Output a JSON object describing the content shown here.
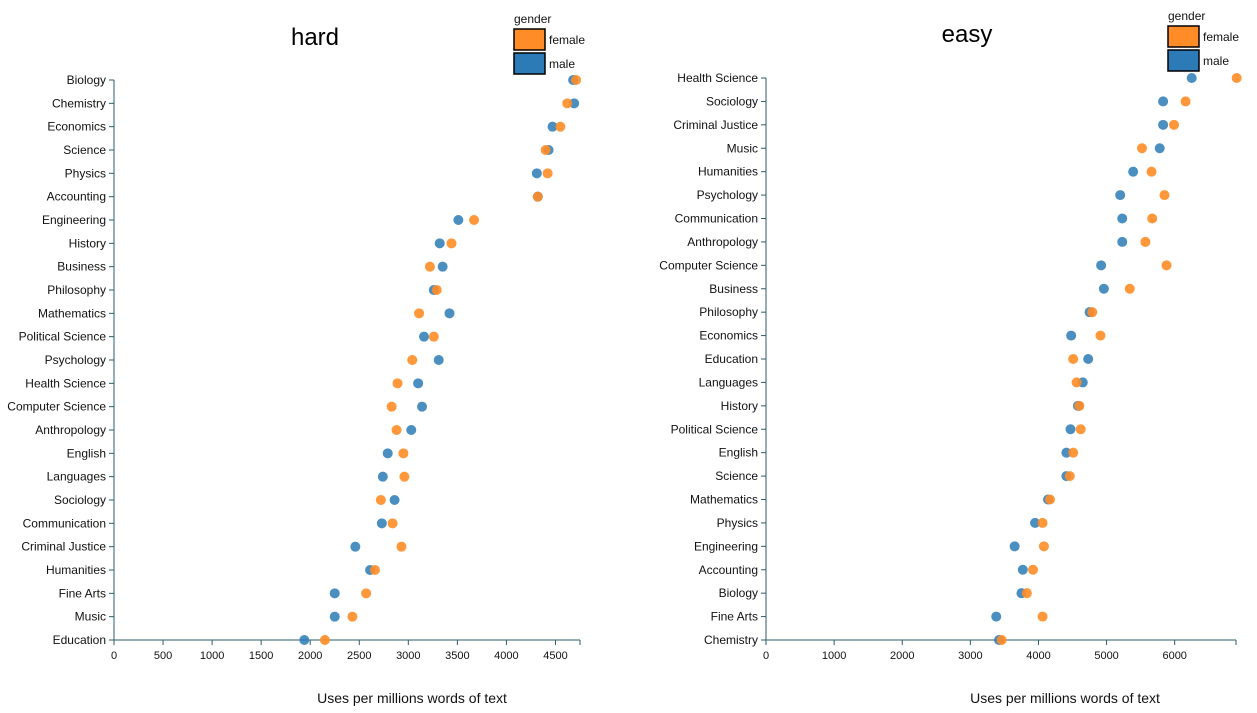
{
  "colors": {
    "female": "#ff8c26",
    "male": "#2c7bb6",
    "axis": "#2b5d6b"
  },
  "chart_data": [
    {
      "type": "scatter",
      "title": "hard",
      "xlabel": "Uses per millions words of text",
      "xlim": [
        0,
        4750
      ],
      "xticks": [
        0,
        500,
        1000,
        1500,
        2000,
        2500,
        3000,
        3500,
        4000,
        4500
      ],
      "legend": {
        "title": "gender",
        "entries": [
          "female",
          "male"
        ],
        "position": "top-right"
      },
      "categories": [
        "Biology",
        "Chemistry",
        "Economics",
        "Science",
        "Physics",
        "Accounting",
        "Engineering",
        "History",
        "Business",
        "Philosophy",
        "Mathematics",
        "Political Science",
        "Psychology",
        "Health Science",
        "Computer Science",
        "Anthropology",
        "English",
        "Languages",
        "Sociology",
        "Communication",
        "Criminal Justice",
        "Humanities",
        "Fine Arts",
        "Music",
        "Education"
      ],
      "series": [
        {
          "name": "male",
          "values": [
            4680,
            4690,
            4470,
            4430,
            4310,
            4320,
            3510,
            3320,
            3350,
            3260,
            3420,
            3160,
            3310,
            3100,
            3140,
            3030,
            2790,
            2740,
            2860,
            2730,
            2460,
            2610,
            2250,
            2250,
            1940
          ]
        },
        {
          "name": "female",
          "values": [
            4710,
            4620,
            4550,
            4400,
            4420,
            4320,
            3670,
            3440,
            3220,
            3290,
            3110,
            3260,
            3040,
            2890,
            2830,
            2880,
            2950,
            2960,
            2720,
            2840,
            2930,
            2660,
            2570,
            2430,
            2150
          ]
        }
      ]
    },
    {
      "type": "scatter",
      "title": "easy",
      "xlabel": "Uses per millions words of text",
      "xlim": [
        0,
        6900
      ],
      "xticks": [
        0,
        1000,
        2000,
        3000,
        4000,
        5000,
        6000
      ],
      "legend": {
        "title": "gender",
        "entries": [
          "female",
          "male"
        ],
        "position": "top-right"
      },
      "categories": [
        "Health Science",
        "Sociology",
        "Criminal Justice",
        "Music",
        "Humanities",
        "Psychology",
        "Communication",
        "Anthropology",
        "Computer Science",
        "Business",
        "Philosophy",
        "Economics",
        "Education",
        "Languages",
        "History",
        "Political Science",
        "English",
        "Science",
        "Mathematics",
        "Physics",
        "Engineering",
        "Accounting",
        "Biology",
        "Fine Arts",
        "Chemistry"
      ],
      "series": [
        {
          "name": "male",
          "values": [
            6250,
            5830,
            5830,
            5780,
            5390,
            5200,
            5230,
            5230,
            4920,
            4960,
            4750,
            4480,
            4730,
            4650,
            4580,
            4470,
            4410,
            4410,
            4140,
            3950,
            3650,
            3770,
            3750,
            3380,
            3420
          ]
        },
        {
          "name": "female",
          "values": [
            6910,
            6160,
            5990,
            5520,
            5660,
            5850,
            5670,
            5570,
            5880,
            5340,
            4790,
            4910,
            4510,
            4560,
            4600,
            4620,
            4510,
            4460,
            4170,
            4060,
            4080,
            3920,
            3830,
            4060,
            3460
          ]
        }
      ]
    }
  ]
}
